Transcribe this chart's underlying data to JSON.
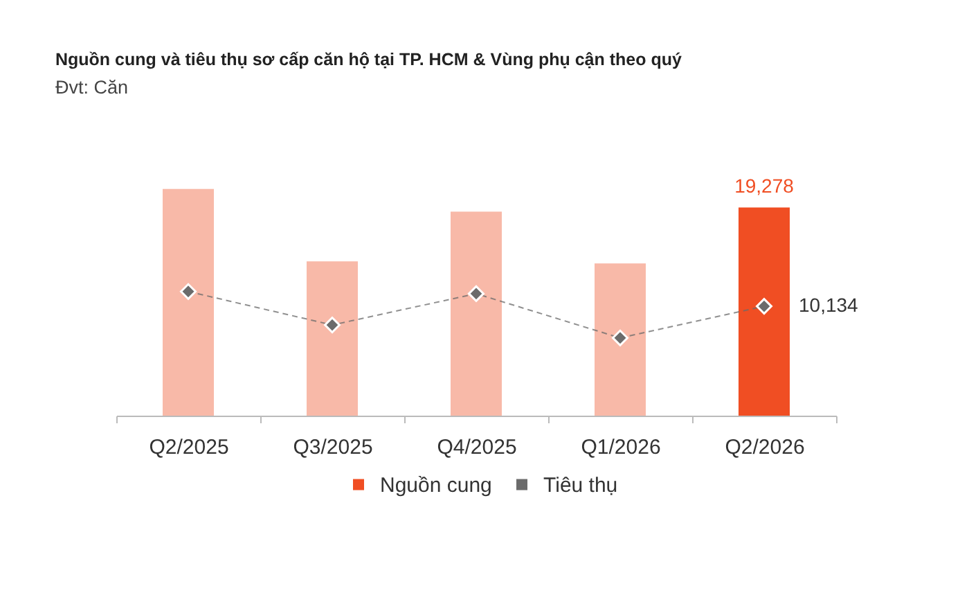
{
  "chart_data": {
    "type": "bar",
    "title": "Nguồn cung và tiêu thụ sơ cấp căn hộ tại TP. HCM & Vùng phụ cận theo quý",
    "subtitle": "Đvt: Căn",
    "categories": [
      "Q2/2025",
      "Q3/2025",
      "Q4/2025",
      "Q1/2026",
      "Q2/2026"
    ],
    "series": [
      {
        "name": "Nguồn cung",
        "color": "#f04e23",
        "colors": [
          "#f8b9a8",
          "#f8b9a8",
          "#f8b9a8",
          "#f8b9a8",
          "#f04e23"
        ],
        "values": [
          21000,
          14300,
          18900,
          14100,
          19278
        ],
        "value_labels": [
          null,
          null,
          null,
          null,
          "19,278"
        ]
      },
      {
        "name": "Tiêu thụ",
        "type": "line",
        "color": "#6b6b6b",
        "marker": "diamond",
        "line_style": "dashed",
        "values": [
          11500,
          8400,
          11300,
          7200,
          10134
        ],
        "value_labels": [
          null,
          null,
          null,
          null,
          "10,134"
        ]
      }
    ],
    "legend": "bottom"
  }
}
